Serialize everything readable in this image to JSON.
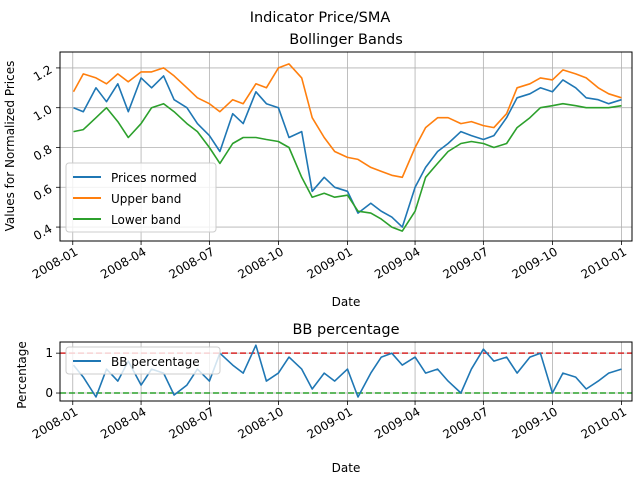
{
  "figure": {
    "suptitle": "Indicator Price/SMA"
  },
  "chart_data": [
    {
      "type": "line",
      "title": "Bollinger Bands",
      "xlabel": "Date",
      "ylabel": "Values for Normalized Prices",
      "xlim": [
        "2007-12-15",
        "2010-01-15"
      ],
      "ylim": [
        0.33,
        1.28
      ],
      "x_ticks": [
        "2008-01",
        "2008-04",
        "2008-07",
        "2008-10",
        "2009-01",
        "2009-04",
        "2009-07",
        "2009-10",
        "2010-01"
      ],
      "y_ticks": [
        0.4,
        0.6,
        0.8,
        1.0,
        1.2
      ],
      "y_tick_labels": [
        "0.4",
        "0.6",
        "0.8",
        "1.0",
        "1.2"
      ],
      "grid": true,
      "legend": "lower-left",
      "series": [
        {
          "name": "Prices normed",
          "color": "#1f77b4",
          "x": [
            "2008-01-02",
            "2008-01-15",
            "2008-02-01",
            "2008-02-15",
            "2008-03-01",
            "2008-03-15",
            "2008-04-01",
            "2008-04-15",
            "2008-05-01",
            "2008-05-15",
            "2008-06-01",
            "2008-06-15",
            "2008-07-01",
            "2008-07-15",
            "2008-08-01",
            "2008-08-15",
            "2008-09-01",
            "2008-09-15",
            "2008-10-01",
            "2008-10-15",
            "2008-11-01",
            "2008-11-15",
            "2008-12-01",
            "2008-12-15",
            "2009-01-01",
            "2009-01-15",
            "2009-02-01",
            "2009-02-15",
            "2009-03-01",
            "2009-03-15",
            "2009-04-01",
            "2009-04-15",
            "2009-05-01",
            "2009-05-15",
            "2009-06-01",
            "2009-06-15",
            "2009-07-01",
            "2009-07-15",
            "2009-08-01",
            "2009-08-15",
            "2009-09-01",
            "2009-09-15",
            "2009-10-01",
            "2009-10-15",
            "2009-11-01",
            "2009-11-15",
            "2009-12-01",
            "2009-12-15",
            "2010-01-01"
          ],
          "values": [
            1.0,
            0.98,
            1.1,
            1.03,
            1.12,
            0.98,
            1.15,
            1.1,
            1.16,
            1.04,
            1.0,
            0.92,
            0.86,
            0.78,
            0.97,
            0.92,
            1.08,
            1.02,
            1.0,
            0.85,
            0.88,
            0.58,
            0.65,
            0.6,
            0.58,
            0.47,
            0.52,
            0.48,
            0.45,
            0.4,
            0.6,
            0.7,
            0.78,
            0.82,
            0.88,
            0.86,
            0.84,
            0.86,
            0.95,
            1.05,
            1.07,
            1.1,
            1.08,
            1.14,
            1.1,
            1.05,
            1.04,
            1.02,
            1.04
          ]
        },
        {
          "name": "Upper band",
          "color": "#ff7f0e",
          "x": [
            "2008-01-02",
            "2008-01-15",
            "2008-02-01",
            "2008-02-15",
            "2008-03-01",
            "2008-03-15",
            "2008-04-01",
            "2008-04-15",
            "2008-05-01",
            "2008-05-15",
            "2008-06-01",
            "2008-06-15",
            "2008-07-01",
            "2008-07-15",
            "2008-08-01",
            "2008-08-15",
            "2008-09-01",
            "2008-09-15",
            "2008-10-01",
            "2008-10-15",
            "2008-11-01",
            "2008-11-15",
            "2008-12-01",
            "2008-12-15",
            "2009-01-01",
            "2009-01-15",
            "2009-02-01",
            "2009-02-15",
            "2009-03-01",
            "2009-03-15",
            "2009-04-01",
            "2009-04-15",
            "2009-05-01",
            "2009-05-15",
            "2009-06-01",
            "2009-06-15",
            "2009-07-01",
            "2009-07-15",
            "2009-08-01",
            "2009-08-15",
            "2009-09-01",
            "2009-09-15",
            "2009-10-01",
            "2009-10-15",
            "2009-11-01",
            "2009-11-15",
            "2009-12-01",
            "2009-12-15",
            "2010-01-01"
          ],
          "values": [
            1.08,
            1.17,
            1.15,
            1.12,
            1.17,
            1.13,
            1.18,
            1.18,
            1.2,
            1.16,
            1.1,
            1.05,
            1.02,
            0.98,
            1.04,
            1.02,
            1.12,
            1.1,
            1.2,
            1.22,
            1.15,
            0.95,
            0.85,
            0.78,
            0.75,
            0.74,
            0.7,
            0.68,
            0.66,
            0.65,
            0.8,
            0.9,
            0.95,
            0.95,
            0.92,
            0.93,
            0.91,
            0.9,
            0.97,
            1.1,
            1.12,
            1.15,
            1.14,
            1.19,
            1.17,
            1.15,
            1.1,
            1.07,
            1.05
          ]
        },
        {
          "name": "Lower band",
          "color": "#2ca02c",
          "x": [
            "2008-01-02",
            "2008-01-15",
            "2008-02-01",
            "2008-02-15",
            "2008-03-01",
            "2008-03-15",
            "2008-04-01",
            "2008-04-15",
            "2008-05-01",
            "2008-05-15",
            "2008-06-01",
            "2008-06-15",
            "2008-07-01",
            "2008-07-15",
            "2008-08-01",
            "2008-08-15",
            "2008-09-01",
            "2008-09-15",
            "2008-10-01",
            "2008-10-15",
            "2008-11-01",
            "2008-11-15",
            "2008-12-01",
            "2008-12-15",
            "2009-01-01",
            "2009-01-15",
            "2009-02-01",
            "2009-02-15",
            "2009-03-01",
            "2009-03-15",
            "2009-04-01",
            "2009-04-15",
            "2009-05-01",
            "2009-05-15",
            "2009-06-01",
            "2009-06-15",
            "2009-07-01",
            "2009-07-15",
            "2009-08-01",
            "2009-08-15",
            "2009-09-01",
            "2009-09-15",
            "2009-10-01",
            "2009-10-15",
            "2009-11-01",
            "2009-11-15",
            "2009-12-01",
            "2009-12-15",
            "2010-01-01"
          ],
          "values": [
            0.88,
            0.89,
            0.95,
            1.0,
            0.93,
            0.85,
            0.92,
            1.0,
            1.02,
            0.98,
            0.92,
            0.88,
            0.8,
            0.72,
            0.82,
            0.85,
            0.85,
            0.84,
            0.83,
            0.8,
            0.65,
            0.55,
            0.57,
            0.55,
            0.56,
            0.48,
            0.47,
            0.44,
            0.4,
            0.38,
            0.48,
            0.65,
            0.72,
            0.78,
            0.82,
            0.83,
            0.82,
            0.8,
            0.82,
            0.9,
            0.95,
            1.0,
            1.01,
            1.02,
            1.01,
            1.0,
            1.0,
            1.0,
            1.01
          ]
        }
      ]
    },
    {
      "type": "line",
      "title": "BB percentage",
      "xlabel": "Date",
      "ylabel": "Percentage",
      "xlim": [
        "2007-12-15",
        "2010-01-15"
      ],
      "ylim": [
        -0.2,
        1.28
      ],
      "x_ticks": [
        "2008-01",
        "2008-04",
        "2008-07",
        "2008-10",
        "2009-01",
        "2009-04",
        "2009-07",
        "2009-10",
        "2010-01"
      ],
      "y_ticks": [
        0,
        1
      ],
      "y_tick_labels": [
        "0",
        "1"
      ],
      "grid": true,
      "legend": "upper-left",
      "hlines": [
        {
          "y": 1,
          "color": "#d62728",
          "style": "dashed"
        },
        {
          "y": 0,
          "color": "#2ca02c",
          "style": "dashed"
        }
      ],
      "series": [
        {
          "name": "BB percentage",
          "color": "#1f77b4",
          "x": [
            "2008-01-02",
            "2008-01-15",
            "2008-02-01",
            "2008-02-15",
            "2008-03-01",
            "2008-03-15",
            "2008-04-01",
            "2008-04-15",
            "2008-05-01",
            "2008-05-15",
            "2008-06-01",
            "2008-06-15",
            "2008-07-01",
            "2008-07-15",
            "2008-08-01",
            "2008-08-15",
            "2008-09-01",
            "2008-09-15",
            "2008-10-01",
            "2008-10-15",
            "2008-11-01",
            "2008-11-15",
            "2008-12-01",
            "2008-12-15",
            "2009-01-01",
            "2009-01-15",
            "2009-02-01",
            "2009-02-15",
            "2009-03-01",
            "2009-03-15",
            "2009-04-01",
            "2009-04-15",
            "2009-05-01",
            "2009-05-15",
            "2009-06-01",
            "2009-06-15",
            "2009-07-01",
            "2009-07-15",
            "2009-08-01",
            "2009-08-15",
            "2009-09-01",
            "2009-09-15",
            "2009-10-01",
            "2009-10-15",
            "2009-11-01",
            "2009-11-15",
            "2009-12-01",
            "2009-12-15",
            "2010-01-01"
          ],
          "values": [
            0.7,
            0.4,
            -0.1,
            0.6,
            0.3,
            0.8,
            0.2,
            0.6,
            0.5,
            -0.05,
            0.2,
            0.6,
            0.3,
            1.0,
            0.7,
            0.5,
            1.2,
            0.3,
            0.5,
            0.9,
            0.6,
            0.1,
            0.5,
            0.3,
            0.6,
            -0.1,
            0.5,
            0.9,
            1.0,
            0.7,
            0.9,
            0.5,
            0.6,
            0.3,
            0.0,
            0.6,
            1.1,
            0.8,
            0.9,
            0.5,
            0.9,
            1.0,
            0.0,
            0.5,
            0.4,
            0.1,
            0.3,
            0.5,
            0.6
          ]
        }
      ]
    }
  ]
}
